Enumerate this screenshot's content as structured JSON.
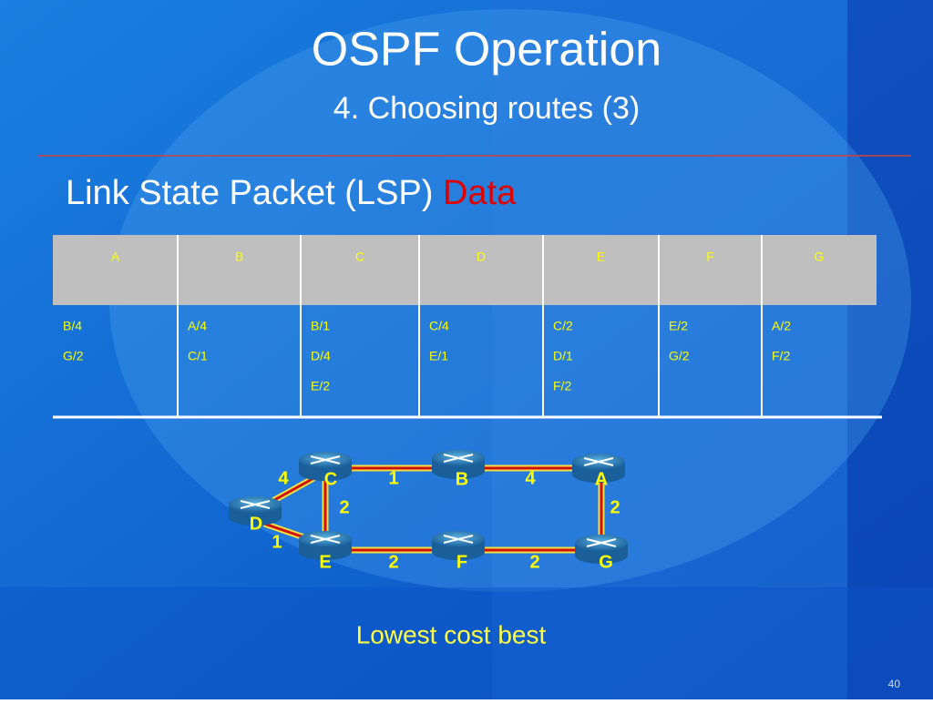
{
  "header": {
    "title": "OSPF Operation",
    "subtitle": "4. Choosing routes (3)"
  },
  "heading": {
    "text": "Link State Packet (LSP)",
    "highlight": "Data"
  },
  "table": {
    "headers": [
      "A",
      "B",
      "C",
      "D",
      "E",
      "F",
      "G"
    ],
    "cells": [
      [
        "B/4",
        "G/2"
      ],
      [
        "A/4",
        "C/1"
      ],
      [
        "B/1",
        "D/4",
        "E/2"
      ],
      [
        "C/4",
        "E/1"
      ],
      [
        "C/2",
        "D/1",
        "F/2"
      ],
      [
        "E/2",
        "G/2"
      ],
      [
        "A/2",
        "F/2"
      ]
    ]
  },
  "diagram": {
    "nodes": [
      {
        "label": "C"
      },
      {
        "label": "B"
      },
      {
        "label": "A"
      },
      {
        "label": "D"
      },
      {
        "label": "E"
      },
      {
        "label": "F"
      },
      {
        "label": "G"
      }
    ],
    "edges": [
      {
        "cost": 1
      },
      {
        "cost": 4
      },
      {
        "cost": 4
      },
      {
        "cost": 2
      },
      {
        "cost": 2
      },
      {
        "cost": 1
      },
      {
        "cost": 2
      },
      {
        "cost": 2
      }
    ]
  },
  "caption": "Lowest cost best",
  "page_number": "40"
}
